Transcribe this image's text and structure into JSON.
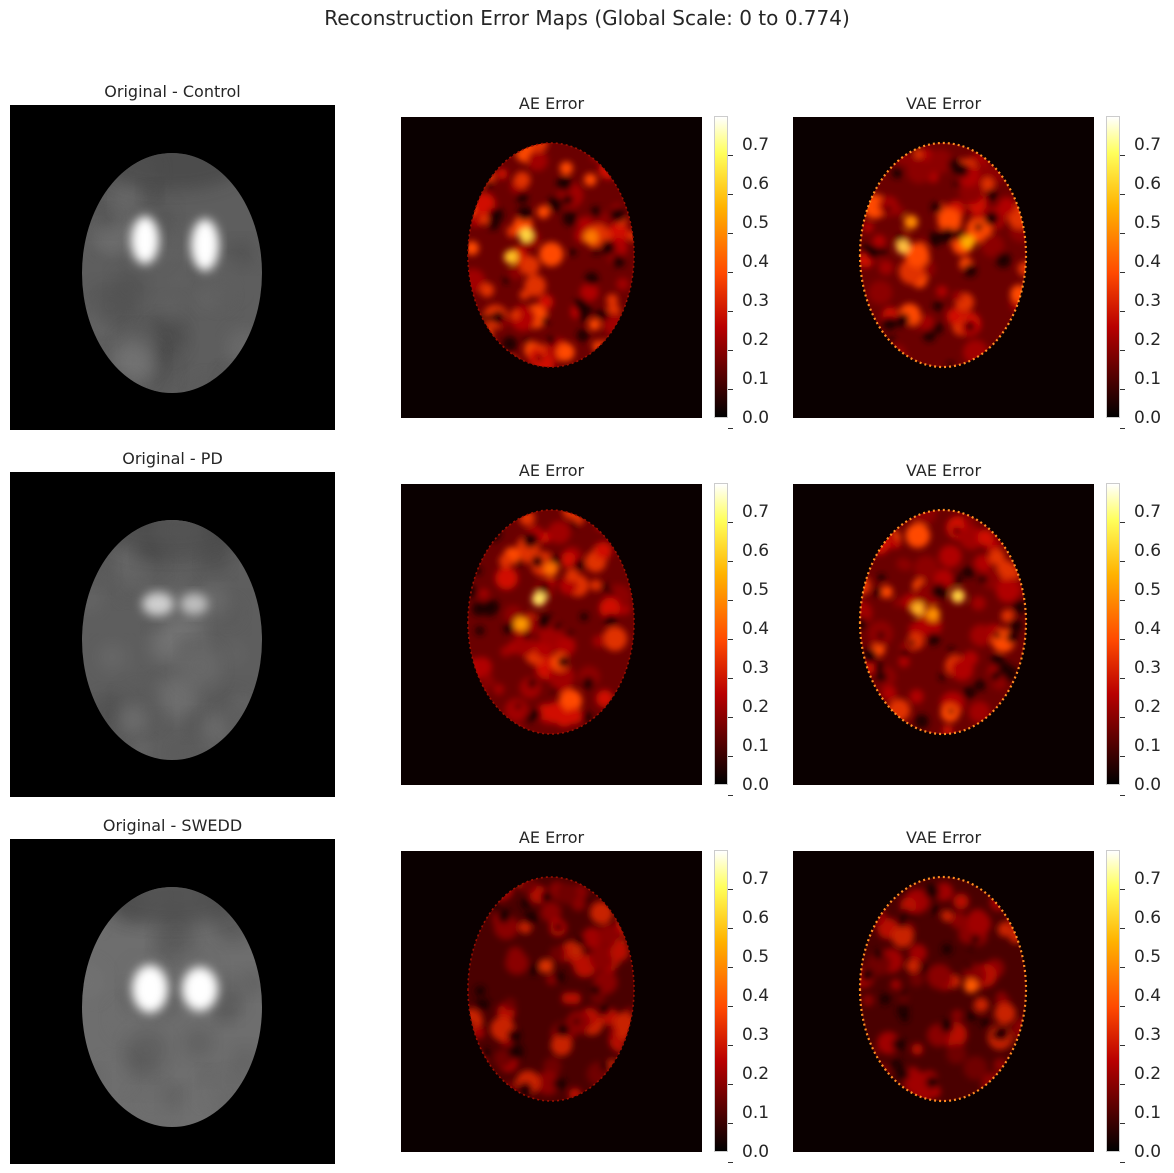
{
  "title": "Reconstruction Error Maps (Global Scale: 0 to 0.774)",
  "chart_data": {
    "type": "heatmap",
    "colormap": "hot",
    "vmin": 0,
    "vmax": 0.774,
    "rows": [
      {
        "group": "Control",
        "panels": [
          {
            "title": "Original - Control",
            "kind": "original"
          },
          {
            "title": "AE Error",
            "kind": "error",
            "model": "AE"
          },
          {
            "title": "VAE Error",
            "kind": "error",
            "model": "VAE"
          }
        ]
      },
      {
        "group": "PD",
        "panels": [
          {
            "title": "Original - PD",
            "kind": "original"
          },
          {
            "title": "AE Error",
            "kind": "error",
            "model": "AE"
          },
          {
            "title": "VAE Error",
            "kind": "error",
            "model": "VAE"
          }
        ]
      },
      {
        "group": "SWEDD",
        "panels": [
          {
            "title": "Original - SWEDD",
            "kind": "original"
          },
          {
            "title": "AE Error",
            "kind": "error",
            "model": "AE"
          },
          {
            "title": "VAE Error",
            "kind": "error",
            "model": "VAE"
          }
        ]
      }
    ],
    "colorbar_ticks": [
      "0.0",
      "0.1",
      "0.2",
      "0.3",
      "0.4",
      "0.5",
      "0.6",
      "0.7"
    ]
  }
}
